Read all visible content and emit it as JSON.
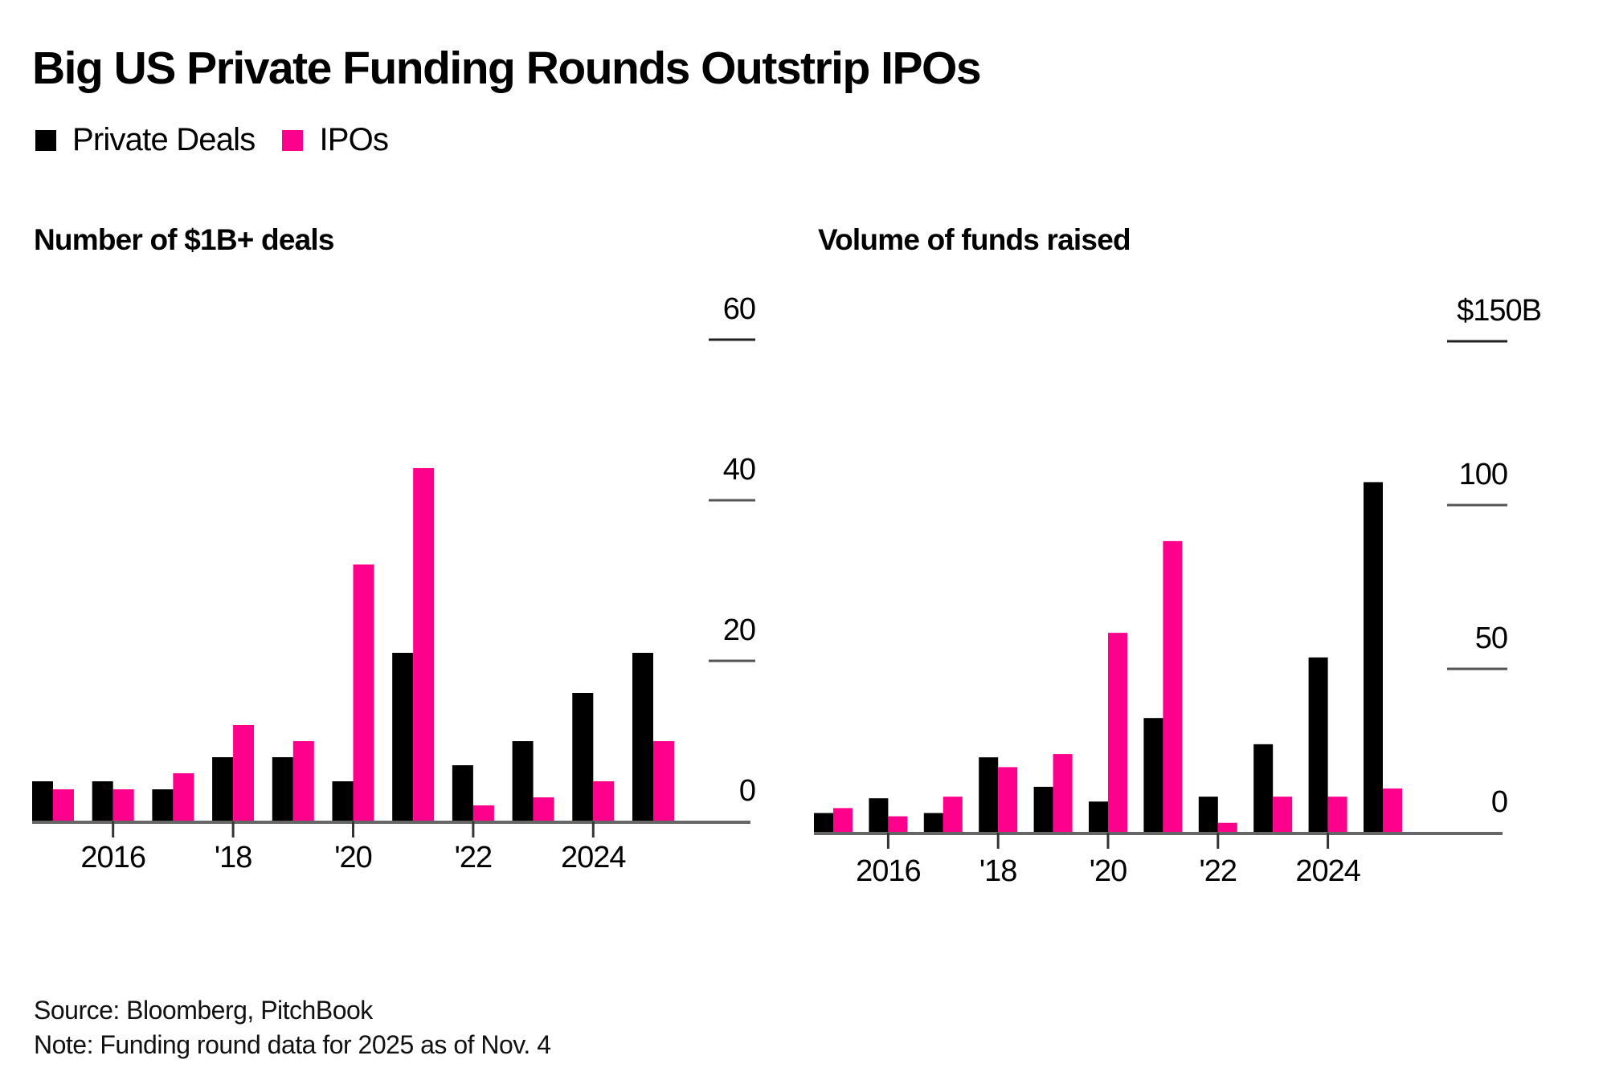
{
  "title": "Big US Private Funding Rounds Outstrip IPOs",
  "colors": {
    "private": "#000000",
    "ipo": "#ff008c",
    "axis": "#666666",
    "grid": "#222222"
  },
  "legend": [
    {
      "label": "Private Deals",
      "series": "private"
    },
    {
      "label": "IPOs",
      "series": "ipo"
    }
  ],
  "footer": {
    "source": "Source: Bloomberg, PitchBook",
    "note": "Note: Funding round data for 2025 as of Nov. 4"
  },
  "chart_data": [
    {
      "type": "bar",
      "title": "Number of $1B+ deals",
      "xlabel": "",
      "ylabel": "",
      "categories": [
        "2015",
        "2016",
        "2017",
        "2018",
        "2019",
        "2020",
        "2021",
        "2022",
        "2023",
        "2024",
        "2025"
      ],
      "x_tick_labels": [
        {
          "category": "2016",
          "label": "2016"
        },
        {
          "category": "2018",
          "label": "'18"
        },
        {
          "category": "2020",
          "label": "'20"
        },
        {
          "category": "2022",
          "label": "'22"
        },
        {
          "category": "2024",
          "label": "2024"
        }
      ],
      "series": [
        {
          "name": "Private Deals",
          "values": [
            5,
            5,
            4,
            8,
            8,
            5,
            21,
            7,
            10,
            16,
            21
          ]
        },
        {
          "name": "IPOs",
          "values": [
            4,
            4,
            6,
            12,
            10,
            32,
            44,
            2,
            3,
            5,
            10
          ]
        }
      ],
      "ylim": [
        0,
        60
      ],
      "y_ticks": [
        {
          "value": 0,
          "label": "0"
        },
        {
          "value": 20,
          "label": "20"
        },
        {
          "value": 40,
          "label": "40"
        },
        {
          "value": 60,
          "label": "60"
        }
      ],
      "grid": true,
      "y_axis_side": "right"
    },
    {
      "type": "bar",
      "title": "Volume of funds raised",
      "xlabel": "",
      "ylabel": "",
      "unit": "$B",
      "categories": [
        "2015",
        "2016",
        "2017",
        "2018",
        "2019",
        "2020",
        "2021",
        "2022",
        "2023",
        "2024",
        "2025"
      ],
      "x_tick_labels": [
        {
          "category": "2016",
          "label": "2016"
        },
        {
          "category": "2018",
          "label": "'18"
        },
        {
          "category": "2020",
          "label": "'20"
        },
        {
          "category": "2022",
          "label": "'22"
        },
        {
          "category": "2024",
          "label": "2024"
        }
      ],
      "series": [
        {
          "name": "Private Deals",
          "values": [
            6,
            10.5,
            6,
            23,
            14,
            9.5,
            35,
            11,
            27,
            53.5,
            107
          ]
        },
        {
          "name": "IPOs",
          "values": [
            7.5,
            5,
            11,
            20,
            24,
            61,
            89,
            3,
            11,
            11,
            13.5
          ]
        }
      ],
      "ylim": [
        0,
        150
      ],
      "y_ticks": [
        {
          "value": 0,
          "label": "0"
        },
        {
          "value": 50,
          "label": "50"
        },
        {
          "value": 100,
          "label": "100"
        },
        {
          "value": 150,
          "label": "$150B"
        }
      ],
      "grid": true,
      "y_axis_side": "right"
    }
  ]
}
